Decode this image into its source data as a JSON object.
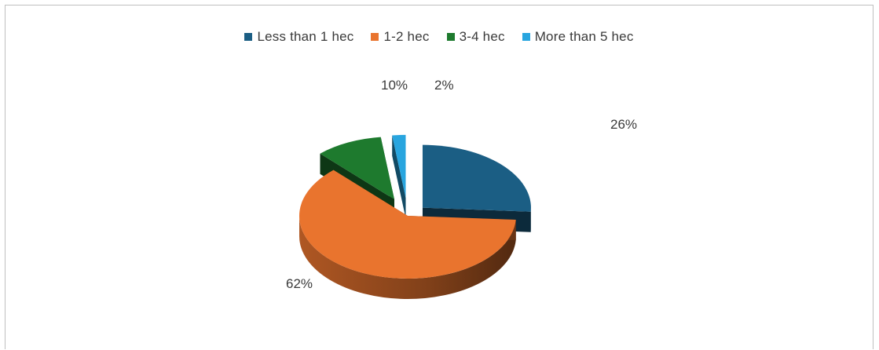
{
  "chart_data": {
    "type": "pie",
    "title": "",
    "categories": [
      "Less than 1 hec",
      "1-2 hec",
      "3-4 hec",
      "More than 5 hec"
    ],
    "values": [
      26,
      62,
      10,
      2
    ],
    "data_labels": [
      "26%",
      "62%",
      "10%",
      "2%"
    ],
    "colors": [
      "#1b5e84",
      "#e9742e",
      "#1e7a2e",
      "#28a5df"
    ],
    "legend_position": "top",
    "exploded": true,
    "three_d": true
  }
}
